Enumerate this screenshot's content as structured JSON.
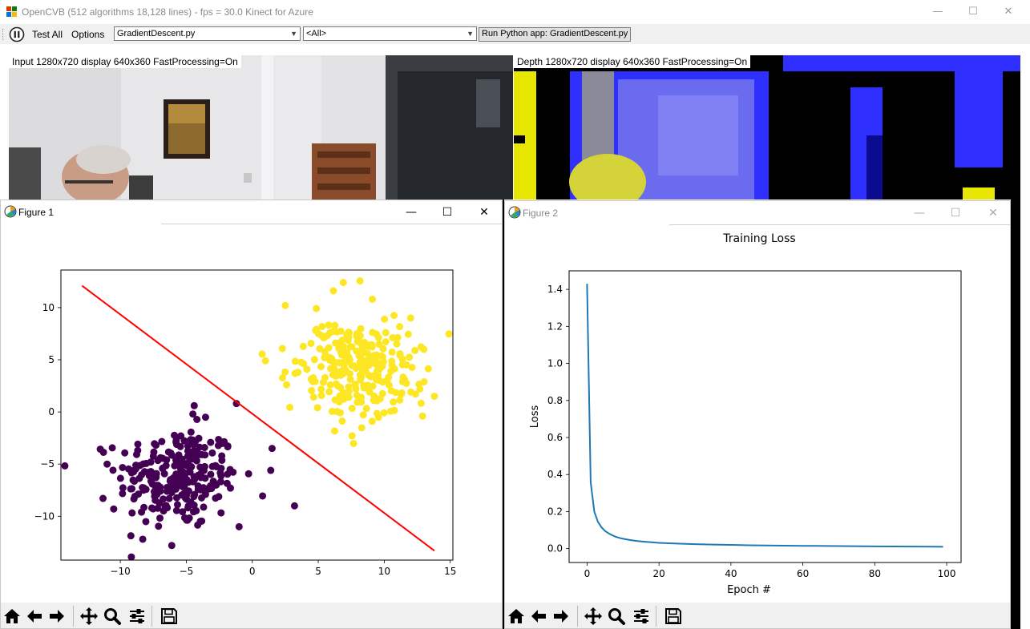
{
  "window": {
    "title": "OpenCVB (512 algorithms 18,128 lines) - fps = 30.0 Kinect for Azure",
    "minimize": "—",
    "maximize": "☐",
    "close": "✕"
  },
  "toolbar": {
    "test_all": "Test All",
    "options": "Options",
    "algorithm_value": "GradientDescent.py",
    "group_value": "<All>",
    "run_button": "Run Python app: GradientDescent.py"
  },
  "panels": {
    "input_label": "Input  1280x720 display 640x360 FastProcessing=On",
    "depth_label": "Depth  1280x720 display 640x360 FastProcessing=On"
  },
  "figure1": {
    "window_title": "Figure 1",
    "icons": [
      "home-icon",
      "back-arrow-icon",
      "forward-arrow-icon",
      "pan-icon",
      "zoom-icon",
      "configure-icon",
      "save-icon"
    ]
  },
  "figure2": {
    "window_title": "Figure 2",
    "icons": [
      "home-icon",
      "back-arrow-icon",
      "forward-arrow-icon",
      "pan-icon",
      "zoom-icon",
      "configure-icon",
      "save-icon"
    ]
  },
  "colors": {
    "class0": "#440154",
    "class1": "#fde725",
    "line": "#ff0000",
    "loss": "#1f77b4",
    "depth_blue": "#2f2fff",
    "depth_yellow": "#e6e600"
  },
  "chart_data": [
    {
      "type": "scatter",
      "title": "",
      "xlabel": "",
      "ylabel": "",
      "xlim": [
        -14.5,
        15.2
      ],
      "ylim": [
        -14.2,
        13.6
      ],
      "xticks": [
        -10,
        -5,
        0,
        5,
        10,
        15
      ],
      "yticks": [
        -10,
        -5,
        0,
        5,
        10
      ],
      "xtick_labels": [
        "−10",
        "−5",
        "0",
        "5",
        "10",
        "15"
      ],
      "ytick_labels": [
        "−10",
        "−5",
        "0",
        "5",
        "10"
      ],
      "series": [
        {
          "center": [
            -5.6,
            -6.3
          ],
          "spread": [
            2.3,
            2.4
          ],
          "count": 250,
          "color": "#440154",
          "points": [
            [
              -11,
              -5
            ],
            [
              -10.5,
              -9.3
            ],
            [
              -8.3,
              -12.2
            ],
            [
              -6.1,
              -12.8
            ],
            [
              -4.5,
              -0.2
            ],
            [
              -4.4,
              0.6
            ],
            [
              -1.2,
              0.8
            ],
            [
              -1,
              -11
            ],
            [
              1.5,
              -3.5
            ],
            [
              1.4,
              -5.6
            ],
            [
              3.2,
              -9
            ]
          ]
        },
        {
          "center": [
            7.8,
            4.1
          ],
          "spread": [
            2.2,
            2.4
          ],
          "count": 250,
          "color": "#fde725",
          "points": [
            [
              1,
              4.9
            ],
            [
              2.5,
              10.2
            ],
            [
              6.9,
              12.4
            ],
            [
              9.1,
              10.8
            ],
            [
              12,
              9
            ],
            [
              13,
              6
            ],
            [
              13.8,
              1.5
            ],
            [
              12.9,
              -0.4
            ],
            [
              2.6,
              2.6
            ]
          ]
        }
      ],
      "line": {
        "x": [
          -12.9,
          13.8
        ],
        "y": [
          12.1,
          -13.3
        ],
        "color": "#ff0000"
      }
    },
    {
      "type": "line",
      "title": "Training Loss",
      "xlabel": "Epoch #",
      "ylabel": "Loss",
      "xlim": [
        -5,
        104
      ],
      "ylim": [
        -0.075,
        1.5
      ],
      "xticks": [
        0,
        20,
        40,
        60,
        80,
        100
      ],
      "yticks": [
        0.0,
        0.2,
        0.4,
        0.6,
        0.8,
        1.0,
        1.2,
        1.4
      ],
      "xtick_labels": [
        "0",
        "20",
        "40",
        "60",
        "80",
        "100"
      ],
      "ytick_labels": [
        "0.0",
        "0.2",
        "0.4",
        "0.6",
        "0.8",
        "1.0",
        "1.2",
        "1.4"
      ],
      "series": [
        {
          "name": "",
          "x": [
            0,
            1,
            2,
            3,
            4,
            5,
            6,
            7,
            8,
            9,
            10,
            12,
            14,
            16,
            18,
            20,
            25,
            30,
            35,
            40,
            45,
            50,
            60,
            70,
            80,
            90,
            99
          ],
          "y": [
            1.43,
            0.36,
            0.2,
            0.145,
            0.115,
            0.095,
            0.082,
            0.072,
            0.064,
            0.058,
            0.053,
            0.046,
            0.041,
            0.037,
            0.034,
            0.031,
            0.027,
            0.024,
            0.022,
            0.02,
            0.018,
            0.017,
            0.015,
            0.0135,
            0.012,
            0.011,
            0.01
          ]
        }
      ]
    }
  ]
}
